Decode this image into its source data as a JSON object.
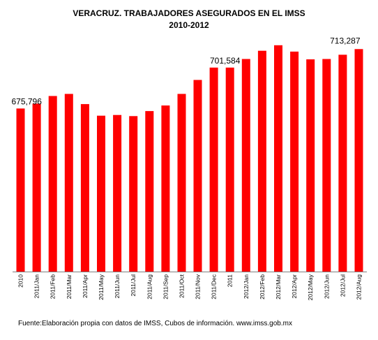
{
  "chart_data": {
    "type": "bar",
    "title": "VERACRUZ. TRABAJADORES ASEGURADOS EN EL IMSS",
    "subtitle": "2010-2012",
    "categories": [
      "2010",
      "2011/Jan",
      "2011/Feb",
      "2011/Mar",
      "2011/Apr",
      "2011/May",
      "2011/Jun",
      "2011/Jul",
      "2011/Aug",
      "2011/Sep",
      "2011/Oct",
      "2011/Nov",
      "2011/Dec",
      "2011",
      "2012/Jan",
      "2012/Feb",
      "2012/Mar",
      "2012/Apr",
      "2012/May",
      "2012/Jun",
      "2012/Jul",
      "2012/Aug"
    ],
    "values": [
      675796,
      678900,
      683700,
      685000,
      678600,
      671300,
      671700,
      671000,
      674200,
      677700,
      685000,
      693800,
      701600,
      701584,
      707000,
      712200,
      715700,
      711700,
      706800,
      707000,
      709700,
      713287
    ],
    "data_labels": [
      {
        "index": 0,
        "text": "675,796"
      },
      {
        "index": 13,
        "text": "701,584"
      },
      {
        "index": 21,
        "text": "713,287"
      }
    ],
    "ylim": [
      573000,
      720000
    ],
    "bar_color": "#ff0000",
    "grid": false,
    "legend": "none",
    "xlabel": "",
    "ylabel": ""
  },
  "source": "Fuente:Elaboración propia con datos de  IMSS, Cubos de información. www.imss.gob.mx"
}
